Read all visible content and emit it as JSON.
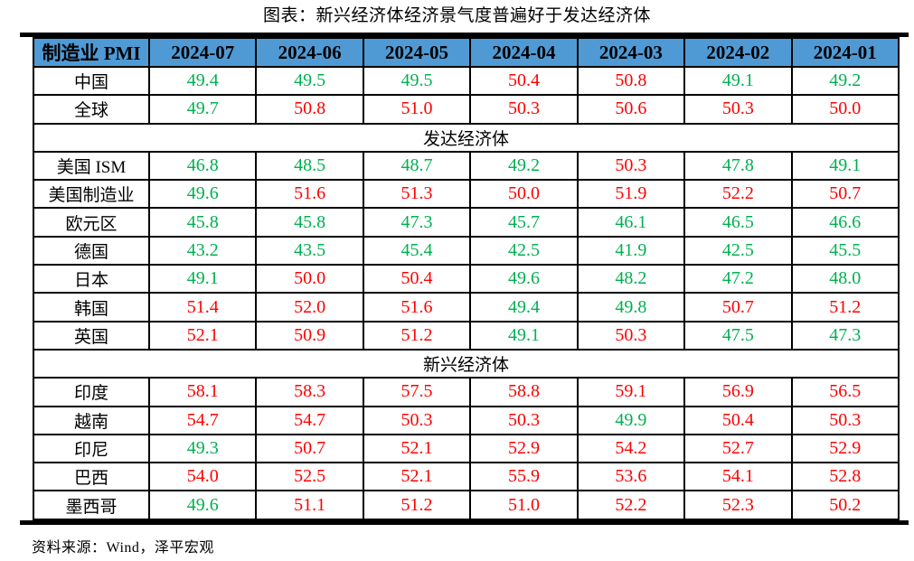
{
  "title": "图表：新兴经济体经济景气度普遍好于发达经济体",
  "source": "资料来源：Wind，泽平宏观",
  "colors": {
    "header_bg": "#4F9AD5",
    "below_50": "#00B050",
    "at_or_above_50": "#FF0000",
    "border": "#000000"
  },
  "chart_data": {
    "type": "table",
    "title": "图表：新兴经济体经济景气度普遍好于发达经济体",
    "columns": [
      "制造业 PMI",
      "2024-07",
      "2024-06",
      "2024-05",
      "2024-04",
      "2024-03",
      "2024-02",
      "2024-01"
    ],
    "color_rule": "value < 50 shown green #00B050; value >= 50 shown red #FF0000",
    "sections": [
      {
        "name": "",
        "rows": [
          {
            "label": "中国",
            "values": [
              "49.4",
              "49.5",
              "49.5",
              "50.4",
              "50.8",
              "49.1",
              "49.2"
            ]
          },
          {
            "label": "全球",
            "values": [
              "49.7",
              "50.8",
              "51.0",
              "50.3",
              "50.6",
              "50.3",
              "50.0"
            ]
          }
        ]
      },
      {
        "name": "发达经济体",
        "rows": [
          {
            "label": "美国 ISM",
            "values": [
              "46.8",
              "48.5",
              "48.7",
              "49.2",
              "50.3",
              "47.8",
              "49.1"
            ]
          },
          {
            "label": "美国制造业",
            "values": [
              "49.6",
              "51.6",
              "51.3",
              "50.0",
              "51.9",
              "52.2",
              "50.7"
            ]
          },
          {
            "label": "欧元区",
            "values": [
              "45.8",
              "45.8",
              "47.3",
              "45.7",
              "46.1",
              "46.5",
              "46.6"
            ]
          },
          {
            "label": "德国",
            "values": [
              "43.2",
              "43.5",
              "45.4",
              "42.5",
              "41.9",
              "42.5",
              "45.5"
            ]
          },
          {
            "label": "日本",
            "values": [
              "49.1",
              "50.0",
              "50.4",
              "49.6",
              "48.2",
              "47.2",
              "48.0"
            ]
          },
          {
            "label": "韩国",
            "values": [
              "51.4",
              "52.0",
              "51.6",
              "49.4",
              "49.8",
              "50.7",
              "51.2"
            ]
          },
          {
            "label": "英国",
            "values": [
              "52.1",
              "50.9",
              "51.2",
              "49.1",
              "50.3",
              "47.5",
              "47.3"
            ]
          }
        ]
      },
      {
        "name": "新兴经济体",
        "rows": [
          {
            "label": "印度",
            "values": [
              "58.1",
              "58.3",
              "57.5",
              "58.8",
              "59.1",
              "56.9",
              "56.5"
            ]
          },
          {
            "label": "越南",
            "values": [
              "54.7",
              "54.7",
              "50.3",
              "50.3",
              "49.9",
              "50.4",
              "50.3"
            ]
          },
          {
            "label": "印尼",
            "values": [
              "49.3",
              "50.7",
              "52.1",
              "52.9",
              "54.2",
              "52.7",
              "52.9"
            ]
          },
          {
            "label": "巴西",
            "values": [
              "54.0",
              "52.5",
              "52.1",
              "55.9",
              "53.6",
              "54.1",
              "52.8"
            ]
          },
          {
            "label": "墨西哥",
            "values": [
              "49.6",
              "51.1",
              "51.2",
              "51.0",
              "52.2",
              "52.3",
              "50.2"
            ]
          }
        ]
      }
    ]
  }
}
